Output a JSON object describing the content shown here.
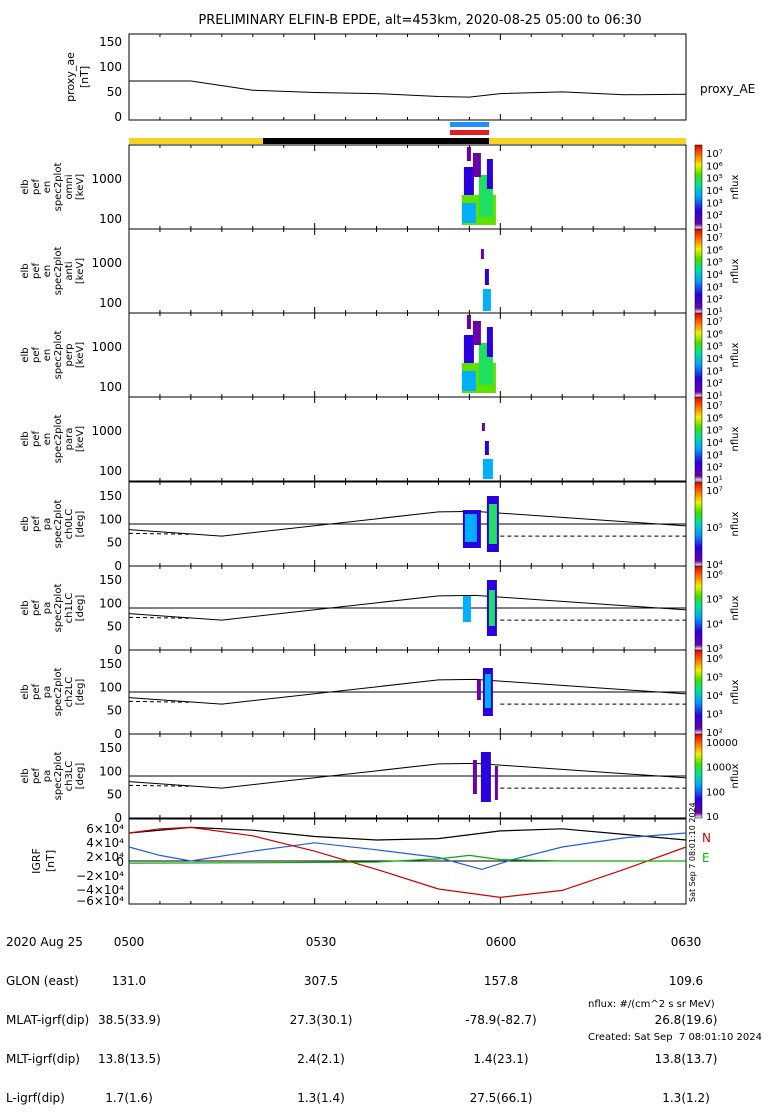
{
  "title": "PRELIMINARY ELFIN-B EPDE, alt=453km, 2020-08-25 05:00 to 06:30",
  "ae_panel": {
    "ylabel": [
      "proxy_ae",
      "[nT]"
    ],
    "legend": "proxy_AE",
    "yticks": [
      "150",
      "100",
      "50",
      "0"
    ]
  },
  "spec_panels": [
    {
      "ylabel": [
        "elb",
        "pef",
        "en",
        "spec2plot",
        "omni",
        "[keV]"
      ],
      "yticks": [
        "1000",
        "100"
      ]
    },
    {
      "ylabel": [
        "elb",
        "pef",
        "en",
        "spec2plot",
        "anti",
        "[keV]"
      ],
      "yticks": [
        "1000",
        "100"
      ]
    },
    {
      "ylabel": [
        "elb",
        "pef",
        "en",
        "spec2plot",
        "perp",
        "[keV]"
      ],
      "yticks": [
        "1000",
        "100"
      ]
    },
    {
      "ylabel": [
        "elb",
        "pef",
        "en",
        "spec2plot",
        "para",
        "[keV]"
      ],
      "yticks": [
        "1000",
        "100"
      ]
    }
  ],
  "pa_panels": [
    {
      "ylabel": [
        "elb",
        "pef",
        "pa",
        "spec2plot",
        "ch0LC",
        "[deg]"
      ],
      "yticks": [
        "150",
        "100",
        "50",
        "0"
      ]
    },
    {
      "ylabel": [
        "elb",
        "pef",
        "pa",
        "spec2plot",
        "ch1LC",
        "[deg]"
      ],
      "yticks": [
        "150",
        "100",
        "50",
        "0"
      ]
    },
    {
      "ylabel": [
        "elb",
        "pef",
        "pa",
        "spec2plot",
        "ch2LC",
        "[deg]"
      ],
      "yticks": [
        "150",
        "100",
        "50",
        "0"
      ]
    },
    {
      "ylabel": [
        "elb",
        "pef",
        "pa",
        "spec2plot",
        "ch3LC",
        "[deg]"
      ],
      "yticks": [
        "150",
        "100",
        "50",
        "0"
      ]
    }
  ],
  "colorbars": [
    {
      "label": "nflux",
      "ticks": [
        "10⁷",
        "10⁶",
        "10⁵",
        "10⁴",
        "10³",
        "10²",
        "10¹"
      ]
    },
    {
      "label": "nflux",
      "ticks": [
        "10⁷",
        "10⁶",
        "10⁵",
        "10⁴",
        "10³",
        "10²",
        "10¹"
      ]
    },
    {
      "label": "nflux",
      "ticks": [
        "10⁷",
        "10⁶",
        "10⁵",
        "10⁴",
        "10³",
        "10²",
        "10¹"
      ]
    },
    {
      "label": "nflux",
      "ticks": [
        "10⁷",
        "10⁶",
        "10⁵",
        "10⁴",
        "10³",
        "10²",
        "10¹"
      ]
    },
    {
      "label": "nflux",
      "ticks": [
        "10⁷",
        "10⁵",
        "10⁴"
      ]
    },
    {
      "label": "nflux",
      "ticks": [
        "10⁶",
        "10⁵",
        "10⁴",
        "10³"
      ]
    },
    {
      "label": "nflux",
      "ticks": [
        "10⁶",
        "10⁵",
        "10⁴",
        "10³",
        "10²"
      ]
    },
    {
      "label": "nflux",
      "ticks": [
        "10000",
        "1000",
        "100",
        "10"
      ]
    }
  ],
  "igrf_panel": {
    "ylabel": [
      "IGRF",
      "[nT]"
    ],
    "yticks": [
      "6×10⁴",
      "4×10⁴",
      "2×10⁴",
      "0",
      "−2×10⁴",
      "−4×10⁴",
      "−6×10⁴"
    ],
    "legend": [
      {
        "label": "N",
        "color": "#d00000"
      },
      {
        "label": "E",
        "color": "#00c000"
      }
    ],
    "side_text": "Sat Sep  7 08:01:10 2024"
  },
  "bottom_labels": {
    "row_labels": [
      "2020 Aug 25",
      "GLON (east)",
      "MLAT-igrf(dip)",
      "MLT-igrf(dip)",
      "L-igrf(dip)"
    ],
    "columns": [
      {
        "time": "0500",
        "values": [
          "131.0",
          "38.5(33.9)",
          "13.8(13.5)",
          "1.7(1.6)"
        ]
      },
      {
        "time": "0530",
        "values": [
          "307.5",
          "27.3(30.1)",
          "2.4(2.1)",
          "1.3(1.4)"
        ]
      },
      {
        "time": "0600",
        "values": [
          "157.8",
          "-78.9(-82.7)",
          "1.4(23.1)",
          "27.5(66.1)"
        ]
      },
      {
        "time": "0630",
        "values": [
          "109.6",
          "26.8(19.6)",
          "13.8(13.7)",
          "1.3(1.2)"
        ]
      }
    ]
  },
  "footer": {
    "units": "nflux: #/(cm^2 s sr MeV)",
    "created": "Created: Sat Sep  7 08:01:10 2024"
  },
  "chart_data": {
    "type": "line",
    "x_range": [
      "2020-08-25 05:00",
      "2020-08-25 06:30"
    ],
    "x_ticks": [
      "0500",
      "0530",
      "0600",
      "0630"
    ],
    "series": [
      {
        "name": "proxy_AE",
        "x_min": [
          0,
          10,
          20,
          30,
          40,
          50,
          55,
          60,
          70,
          80,
          90
        ],
        "values": [
          68,
          68,
          52,
          48,
          46,
          41,
          40,
          46,
          49,
          44,
          45
        ]
      }
    ],
    "ae_ylim": [
      0,
      150
    ],
    "orbit_bar_colors": [
      "#f6d320",
      "#000000",
      "#1e90ff",
      "#e02020"
    ],
    "igrf_ylim": [
      -60000,
      60000
    ],
    "igrf_series": [
      {
        "color": "#000000",
        "x_min": [
          0,
          10,
          20,
          30,
          40,
          50,
          60,
          70,
          80,
          90
        ],
        "values": [
          40000,
          48000,
          44000,
          35000,
          30000,
          32000,
          43000,
          46000,
          38000,
          30000
        ]
      },
      {
        "color": "#1e60e0",
        "x_min": [
          0,
          5,
          10,
          20,
          30,
          40,
          50,
          57,
          62,
          70,
          80,
          90
        ],
        "values": [
          20000,
          8000,
          0,
          14000,
          26000,
          16000,
          5000,
          -12000,
          2000,
          20000,
          33000,
          40000
        ]
      },
      {
        "color": "#d00000",
        "x_min": [
          0,
          5,
          10,
          20,
          30,
          40,
          50,
          60,
          70,
          80,
          90
        ],
        "values": [
          40000,
          46000,
          48000,
          36000,
          14000,
          -12000,
          -40000,
          -52000,
          -42000,
          -12000,
          20000
        ]
      },
      {
        "color": "#00b000",
        "x_min": [
          0,
          20,
          40,
          50,
          55,
          60,
          70,
          80,
          90
        ],
        "values": [
          -3000,
          -2500,
          -1500,
          3000,
          8000,
          2000,
          0,
          0,
          0
        ]
      }
    ]
  }
}
